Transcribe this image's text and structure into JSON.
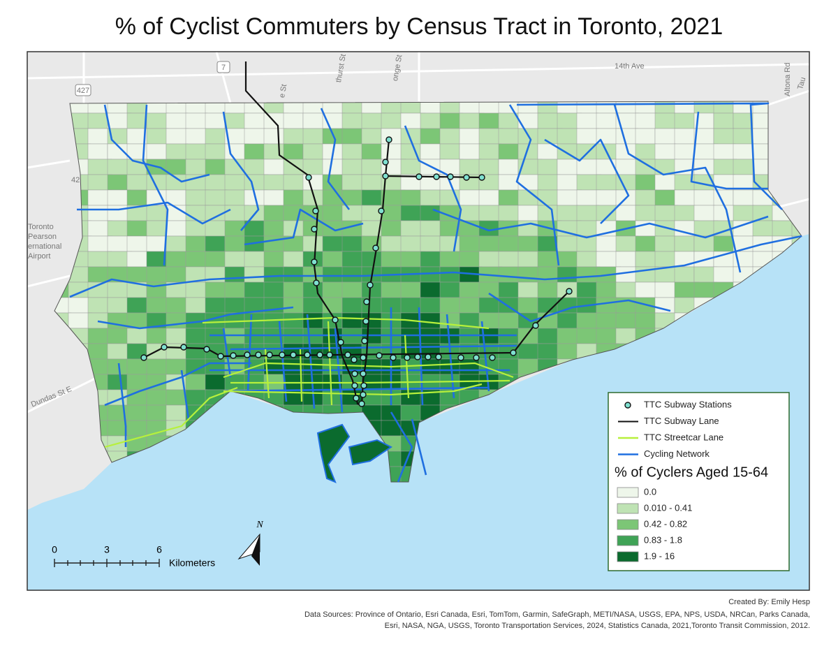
{
  "title": "% of Cyclist Commuters by Census Tract in Toronto, 2021",
  "basemap_labels": [
    "14th Ave",
    "7",
    "427",
    "42",
    "thurst St",
    "onge St",
    "e St",
    "Altona Rd",
    "Tau",
    "Toronto",
    "Pearson",
    "ernational",
    "Airport",
    "Dundas St E"
  ],
  "legend": {
    "items": [
      {
        "label": "TTC Subway Stations",
        "color": "#7fe0d0"
      },
      {
        "label": "TTC Subway Lane",
        "color": "#111111"
      },
      {
        "label": "TTC Streetcar Lane",
        "color": "#b7f03c"
      },
      {
        "label": "Cycling Network",
        "color": "#1f6fe0"
      }
    ],
    "heading": "% of Cyclers Aged 15-64",
    "classes": [
      {
        "label": "0.0",
        "color": "#eef6ea"
      },
      {
        "label": "0.010 - 0.41",
        "color": "#bfe3b4"
      },
      {
        "label": "0.42 - 0.82",
        "color": "#7cc676"
      },
      {
        "label": "0.83 - 1.8",
        "color": "#3fa356"
      },
      {
        "label": "1.9 - 16",
        "color": "#0b6b2e"
      }
    ]
  },
  "scale_bar": {
    "ticks": [
      0,
      3,
      6
    ],
    "unit": "Kilometers"
  },
  "north_arrow": "N",
  "credits": {
    "author": "Created By: Emily Hesp",
    "sources": [
      "Data Sources: Province of Ontario, Esri Canada, Esri, TomTom, Garmin, SafeGraph, METI/NASA, USGS, EPA, NPS, USDA, NRCan, Parks Canada,",
      "Esri, NASA, NGA, USGS, Toronto Transportation Services, 2024, Statistics Canada, 2021,Toronto Transit Commission, 2012."
    ]
  }
}
